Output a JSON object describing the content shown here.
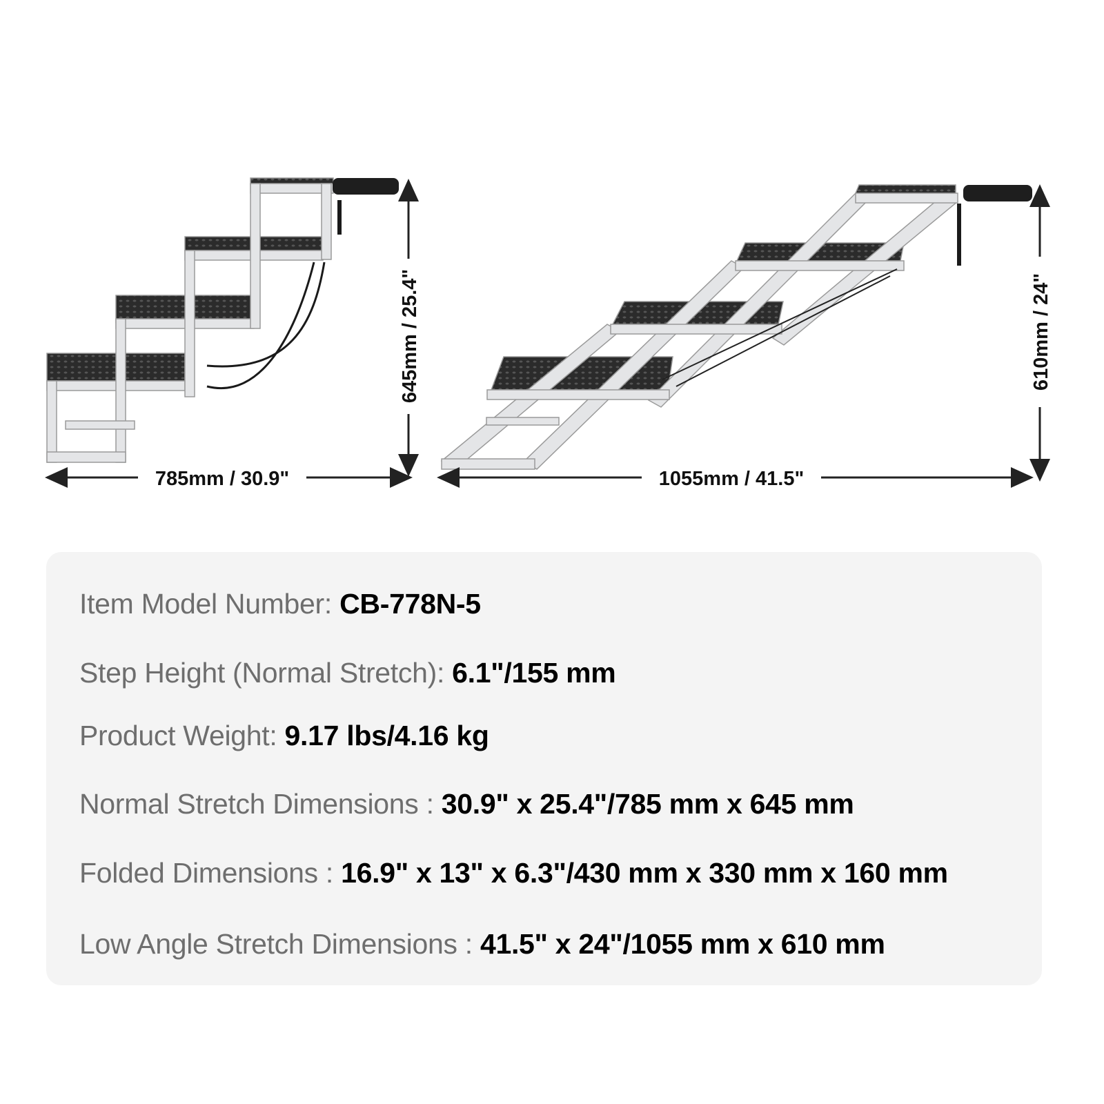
{
  "dimensions": {
    "normal_width": "785mm / 30.9\"",
    "normal_height": "645mm / 25.4\"",
    "low_width": "1055mm / 41.5\"",
    "low_height": "610mm / 24\""
  },
  "specs": [
    {
      "label": "Item Model Number: ",
      "value": "CB-778N-5"
    },
    {
      "label": "Step Height (Normal Stretch): ",
      "value": "6.1\"/155 mm"
    },
    {
      "label": "Product Weight: ",
      "value": "9.17 lbs/4.16 kg"
    },
    {
      "label": "Normal Stretch Dimensions : ",
      "value": "30.9\" x 25.4\"/785 mm x 645 mm"
    },
    {
      "label": "Folded Dimensions : ",
      "value": "16.9\" x 13\" x 6.3\"/430 mm x 330 mm x 160 mm"
    },
    {
      "label": "Low Angle Stretch Dimensions : ",
      "value": "41.5\" x 24\"/1055 mm x 610 mm"
    }
  ],
  "colors": {
    "frame": "#e2e3e5",
    "tread": "#2a2a2a",
    "panel": "#f4f4f4",
    "label": "#6e6e6e"
  }
}
